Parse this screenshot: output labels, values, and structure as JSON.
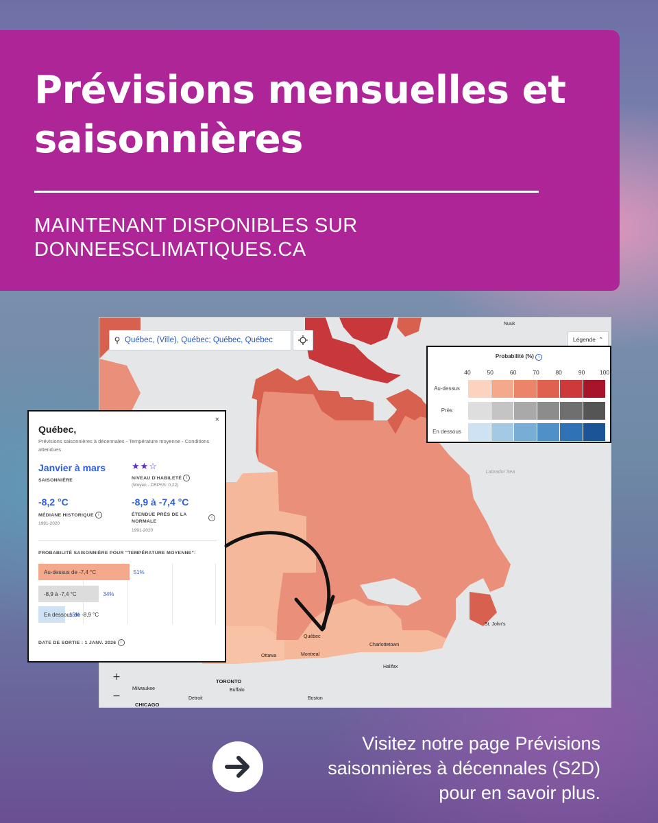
{
  "banner": {
    "title": "Prévisions mensuelles et saisonnières",
    "subtitle_line1": "MAINTENANT DISPONIBLES SUR",
    "subtitle_line2": "DONNEESCLIMATIQUES.CA"
  },
  "map": {
    "search_value": "Québec, (Ville), Québec; Québec, Québec",
    "legend_button_label": "Légende",
    "zoom_in": "+",
    "zoom_out": "−",
    "labels": {
      "nuuk": "Nuuk",
      "labrador_sea": "Labrador Sea",
      "st_johns": "St. John's",
      "quebec": "Québec",
      "charlottetown": "Charlottetown",
      "halifax": "Halifax",
      "ottawa": "Ottawa",
      "montreal": "Montreal",
      "toronto": "TORONTO",
      "buffalo": "Buffalo",
      "milwaukee": "Milwaukee",
      "detroit": "Detroit",
      "chicago": "CHICAGO",
      "boston": "Boston"
    },
    "colors": {
      "land": "#e4e6e8",
      "above_light": "#f6b89a",
      "above_mid": "#ea907a",
      "above_strong": "#d8604f",
      "above_dark": "#c8383a"
    }
  },
  "legend": {
    "title": "Probabilité (%)",
    "ticks": [
      "40",
      "50",
      "60",
      "70",
      "80",
      "90",
      "100"
    ],
    "rows": [
      {
        "label": "Au-dessus",
        "colors": [
          "#fbd3c0",
          "#f4a98c",
          "#ec8468",
          "#e06150",
          "#cc3a3b",
          "#a8142a"
        ]
      },
      {
        "label": "Près",
        "colors": [
          "#dedede",
          "#c4c4c4",
          "#a9a9a9",
          "#8c8c8c",
          "#6f6f6f",
          "#555555"
        ]
      },
      {
        "label": "En dessous",
        "colors": [
          "#cfe2f3",
          "#a4c9e5",
          "#78aed6",
          "#4f90c8",
          "#2f72b5",
          "#1b5597"
        ]
      }
    ]
  },
  "popup": {
    "title": "Québec,",
    "close": "×",
    "description": "Prévisions saisonnières à décennales - Température moyenne - Conditions attendues",
    "period": "Janvier à mars",
    "period_caption": "SAISONNIÈRE",
    "stars": "★★☆",
    "skill_caption": "NIVEAU D'HABILETÉ",
    "skill_detail": "(Moyen - CRPSS: 0,22)",
    "median_value": "-8,2 °C",
    "median_caption": "MÉDIANE HISTORIQUE",
    "median_period": "1991-2020",
    "range_value": "-8,9 à -7,4 °C",
    "range_caption": "ÉTENDUE PRÈS DE LA NORMALE",
    "range_period": "1991-2020",
    "prob_caption": "PROBABILITÉ SAISONNIÈRE POUR \"TEMPÉRATURE MOYENNE\":",
    "bars": [
      {
        "label": "Au-dessus de -7,4 °C",
        "pct": "51%",
        "value": 0.51,
        "color": "#f5a98c"
      },
      {
        "label": "-8,9 à -7,4 °C",
        "pct": "34%",
        "value": 0.34,
        "color": "#dcdcdc"
      },
      {
        "label": "En dessous de -8,9 °C",
        "pct": "15%",
        "value": 0.15,
        "color": "#cfe2f3"
      }
    ],
    "release": "DATE DE SORTIE : 1 JANV. 2026"
  },
  "cta": {
    "line1": "Visitez notre page Prévisions",
    "line2": "saisonnières à décennales (S2D)",
    "line3": "pour en savoir plus."
  }
}
